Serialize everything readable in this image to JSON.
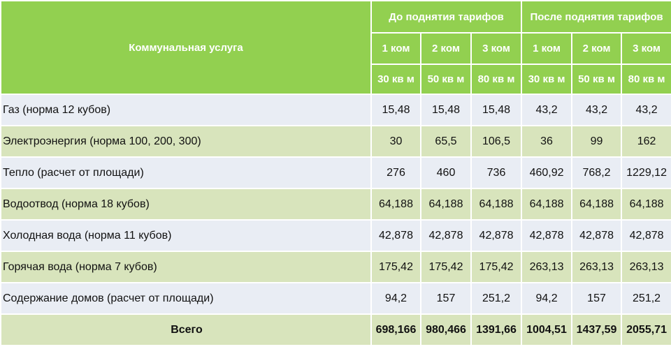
{
  "header": {
    "service": "Коммунальная услуга",
    "before": "До поднятия тарифов",
    "after": "После поднятия тарифов",
    "rooms": [
      "1 ком",
      "2 ком",
      "3 ком",
      "1 ком",
      "2 ком",
      "3 ком"
    ],
    "areas": [
      "30 кв м",
      "50 кв м",
      "80 кв м",
      "30 кв м",
      "50 кв м",
      "80 кв м"
    ]
  },
  "rows": [
    {
      "label": "Газ (норма 12 кубов)",
      "values": [
        "15,48",
        "15,48",
        "15,48",
        "43,2",
        "43,2",
        "43,2"
      ]
    },
    {
      "label": "Электроэнергия (норма 100, 200, 300)",
      "values": [
        "30",
        "65,5",
        "106,5",
        "36",
        "99",
        "162"
      ]
    },
    {
      "label": "Тепло (расчет от площади)",
      "values": [
        "276",
        "460",
        "736",
        "460,92",
        "768,2",
        "1229,12"
      ]
    },
    {
      "label": "Водоотвод  (норма 18 кубов)",
      "values": [
        "64,188",
        "64,188",
        "64,188",
        "64,188",
        "64,188",
        "64,188"
      ]
    },
    {
      "label": "Холодная вода  (норма 11 кубов)",
      "values": [
        "42,878",
        "42,878",
        "42,878",
        "42,878",
        "42,878",
        "42,878"
      ]
    },
    {
      "label": "Горячая вода  (норма 7 кубов)",
      "values": [
        "175,42",
        "175,42",
        "175,42",
        "263,13",
        "263,13",
        "263,13"
      ]
    },
    {
      "label": "Содержание домов (расчет от площади)",
      "values": [
        "94,2",
        "157",
        "251,2",
        "94,2",
        "157",
        "251,2"
      ]
    }
  ],
  "total": {
    "label": "Всего",
    "values": [
      "698,166",
      "980,466",
      "1391,66",
      "1004,51",
      "1437,59",
      "2055,71"
    ]
  },
  "colors": {
    "header": "#92d050",
    "row_light": "#e9edf4",
    "row_green": "#d8e4bc"
  }
}
